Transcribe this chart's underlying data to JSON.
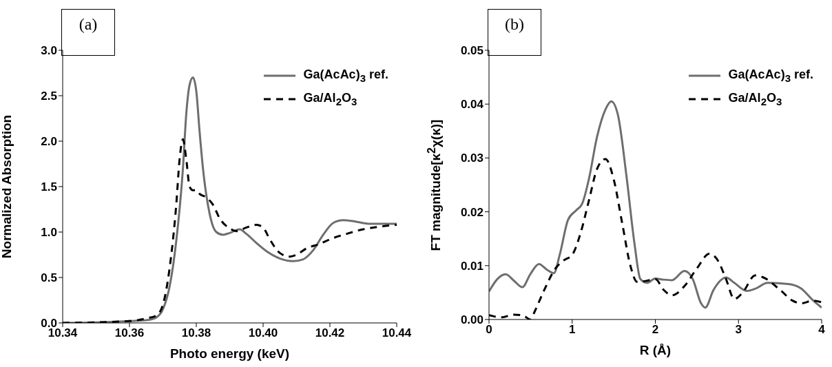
{
  "chart_data": [
    {
      "type": "line",
      "xlabel": "Photo energy (keV)",
      "ylabel": "Normalized Absorption",
      "annotations": [
        "(a)"
      ],
      "legend": "top right",
      "xlim": [
        10.34,
        10.44
      ],
      "xticks": [
        {
          "value": 10.34,
          "label": "10.34"
        },
        {
          "value": 10.36,
          "label": "10.36"
        },
        {
          "value": 10.38,
          "label": "10.38"
        },
        {
          "value": 10.4,
          "label": "10.40"
        },
        {
          "value": 10.42,
          "label": "10.42"
        },
        {
          "value": 10.44,
          "label": "10.44"
        }
      ],
      "ylim": [
        0,
        3
      ],
      "yticks": [
        {
          "value": 0,
          "label": "0.0"
        },
        {
          "value": 0.5,
          "label": "0.5"
        },
        {
          "value": 1,
          "label": "1.0"
        },
        {
          "value": 1.5,
          "label": "1.5"
        },
        {
          "value": 2,
          "label": "2.0"
        },
        {
          "value": 2.5,
          "label": "2.5"
        },
        {
          "value": 3,
          "label": "3.0"
        }
      ],
      "series": [
        {
          "name": "Ga(AcAc)$_{3}$ ref.",
          "color": "#6e6e6e",
          "line_style": "solid",
          "x": [
            10.34,
            10.35,
            10.36,
            10.365,
            10.368,
            10.37,
            10.372,
            10.374,
            10.376,
            10.377,
            10.378,
            10.379,
            10.38,
            10.381,
            10.382,
            10.384,
            10.386,
            10.388,
            10.39,
            10.393,
            10.395,
            10.398,
            10.401,
            10.405,
            10.409,
            10.412,
            10.415,
            10.418,
            10.421,
            10.424,
            10.427,
            10.432,
            10.44
          ],
          "values": [
            0,
            0.005,
            0.02,
            0.03,
            0.06,
            0.15,
            0.4,
            0.9,
            1.7,
            2.3,
            2.62,
            2.7,
            2.55,
            2.1,
            1.7,
            1.2,
            1.0,
            0.97,
            0.99,
            1.03,
            0.98,
            0.88,
            0.79,
            0.71,
            0.68,
            0.7,
            0.8,
            0.97,
            1.1,
            1.13,
            1.12,
            1.09,
            1.09
          ]
        },
        {
          "name": "Ga/Al$_{2}$O$_{3}$",
          "color": "#000000",
          "line_style": "dashed",
          "x": [
            10.34,
            10.36,
            10.365,
            10.368,
            10.37,
            10.372,
            10.374,
            10.375,
            10.376,
            10.377,
            10.378,
            10.379,
            10.38,
            10.381,
            10.383,
            10.385,
            10.387,
            10.39,
            10.392,
            10.395,
            10.398,
            10.4,
            10.402,
            10.405,
            10.408,
            10.41,
            10.413,
            10.417,
            10.42,
            10.425,
            10.43,
            10.435,
            10.44
          ],
          "values": [
            0,
            0.02,
            0.05,
            0.08,
            0.2,
            0.6,
            1.3,
            1.8,
            2.02,
            1.8,
            1.5,
            1.46,
            1.46,
            1.42,
            1.38,
            1.3,
            1.15,
            1.04,
            1.01,
            1.05,
            1.08,
            1.05,
            0.92,
            0.77,
            0.73,
            0.75,
            0.82,
            0.87,
            0.92,
            0.98,
            1.03,
            1.06,
            1.08
          ]
        }
      ]
    },
    {
      "type": "line",
      "xlabel": "R (Å)",
      "ylabel": "FT magnitude[κ$^{2}$χ(κ)]",
      "annotations": [
        "(b)"
      ],
      "legend": "top right",
      "xlim": [
        0,
        4
      ],
      "xticks": [
        0,
        1,
        2,
        3,
        4
      ],
      "ylim": [
        0,
        0.05
      ],
      "yticks": [
        {
          "value": 0,
          "label": "0.00"
        },
        {
          "value": 0.01,
          "label": "0.01"
        },
        {
          "value": 0.02,
          "label": "0.02"
        },
        {
          "value": 0.03,
          "label": "0.03"
        },
        {
          "value": 0.04,
          "label": "0.04"
        },
        {
          "value": 0.05,
          "label": "0.05"
        }
      ],
      "series": [
        {
          "name": "Ga(AcAc)$_{3}$ ref.",
          "color": "#6e6e6e",
          "line_style": "solid",
          "x": [
            0,
            0.1,
            0.2,
            0.3,
            0.4,
            0.5,
            0.6,
            0.7,
            0.78,
            0.85,
            0.95,
            1.05,
            1.12,
            1.2,
            1.3,
            1.4,
            1.47,
            1.55,
            1.65,
            1.75,
            1.82,
            1.9,
            2.0,
            2.1,
            2.2,
            2.35,
            2.45,
            2.55,
            2.6,
            2.7,
            2.85,
            2.95,
            3.1,
            3.2,
            3.35,
            3.6,
            3.75,
            3.9,
            4.0
          ],
          "values": [
            0.0052,
            0.0075,
            0.0084,
            0.0072,
            0.006,
            0.0085,
            0.0103,
            0.0092,
            0.0086,
            0.012,
            0.0185,
            0.0203,
            0.0215,
            0.026,
            0.034,
            0.039,
            0.0405,
            0.038,
            0.027,
            0.014,
            0.0075,
            0.0068,
            0.0076,
            0.0074,
            0.0073,
            0.009,
            0.0075,
            0.003,
            0.0022,
            0.0055,
            0.0078,
            0.0068,
            0.0053,
            0.0057,
            0.0068,
            0.0066,
            0.0058,
            0.0035,
            0.0022
          ]
        },
        {
          "name": "Ga/Al$_{2}$O$_{3}$",
          "color": "#000000",
          "line_style": "dashed",
          "x": [
            0,
            0.15,
            0.3,
            0.4,
            0.5,
            0.55,
            0.65,
            0.8,
            0.9,
            1.0,
            1.1,
            1.2,
            1.3,
            1.4,
            1.5,
            1.6,
            1.7,
            1.78,
            1.9,
            2.0,
            2.1,
            2.2,
            2.35,
            2.5,
            2.65,
            2.75,
            2.85,
            2.95,
            3.05,
            3.2,
            3.3,
            3.5,
            3.65,
            3.75,
            3.9,
            4.0
          ],
          "values": [
            0.0008,
            0.0004,
            0.0009,
            0.0008,
            0.0,
            0.0015,
            0.005,
            0.0095,
            0.011,
            0.012,
            0.016,
            0.022,
            0.028,
            0.0298,
            0.026,
            0.018,
            0.01,
            0.007,
            0.0072,
            0.0075,
            0.0055,
            0.0045,
            0.0062,
            0.0095,
            0.0122,
            0.011,
            0.0075,
            0.0038,
            0.005,
            0.0082,
            0.0078,
            0.0055,
            0.0035,
            0.003,
            0.0035,
            0.0032
          ]
        }
      ]
    }
  ]
}
